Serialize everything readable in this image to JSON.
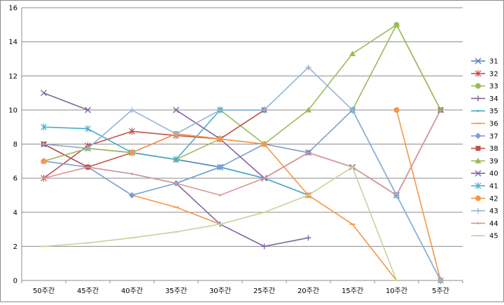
{
  "chart_data": {
    "type": "line",
    "title": "",
    "xlabel": "",
    "ylabel": "",
    "categories": [
      "50주간",
      "45주간",
      "40주간",
      "35주간",
      "30주간",
      "25주간",
      "20주간",
      "15주간",
      "10주간",
      "5주간"
    ],
    "ylim": [
      0,
      16
    ],
    "yticks": [
      "0",
      "2",
      "4",
      "6",
      "8",
      "10",
      "12",
      "14",
      "16"
    ],
    "grid": true,
    "legend": "right",
    "series": [
      {
        "name": "31",
        "color": "#4f81bd",
        "marker": "x",
        "values": [
          8,
          7.75,
          7.5,
          7.1,
          6.65,
          6,
          5,
          null,
          null,
          null
        ]
      },
      {
        "name": "32",
        "color": "#c0504d",
        "marker": "star",
        "values": [
          6,
          7.9,
          8.75,
          8.5,
          8.3,
          null,
          null,
          null,
          null,
          null
        ]
      },
      {
        "name": "33",
        "color": "#9bbb59",
        "marker": "circle",
        "values": [
          null,
          null,
          null,
          null,
          10,
          8,
          null,
          10,
          15,
          10
        ]
      },
      {
        "name": "34",
        "color": "#8064a2",
        "marker": "plus",
        "values": [
          null,
          null,
          null,
          5.7,
          3.3,
          2,
          2.5,
          null,
          null,
          null
        ]
      },
      {
        "name": "35",
        "color": "#4bacc6",
        "marker": "none",
        "values": [
          8,
          6.65,
          6.25,
          5.7,
          6.65,
          6,
          5,
          null,
          null,
          null
        ]
      },
      {
        "name": "36",
        "color": "#f79646",
        "marker": "dash",
        "values": [
          null,
          null,
          5,
          4.3,
          3.3,
          null,
          5,
          3.3,
          0,
          null
        ]
      },
      {
        "name": "37",
        "color": "#7b9fd3",
        "marker": "diamond",
        "values": [
          7,
          6.65,
          5,
          5.7,
          6.65,
          8,
          7.5,
          10,
          5,
          0
        ]
      },
      {
        "name": "38",
        "color": "#c0504d",
        "marker": "square",
        "values": [
          8,
          6.65,
          7.5,
          8.6,
          8.3,
          10,
          null,
          null,
          null,
          null
        ]
      },
      {
        "name": "39",
        "color": "#9bbb59",
        "marker": "triangle",
        "values": [
          7,
          7.75,
          7.5,
          7.1,
          8.3,
          8,
          10,
          13.3,
          15,
          10
        ]
      },
      {
        "name": "40",
        "color": "#8064a2",
        "marker": "x",
        "values": [
          11,
          10,
          null,
          10,
          8.3,
          6,
          7.5,
          6.65,
          5,
          10
        ]
      },
      {
        "name": "41",
        "color": "#4bacc6",
        "marker": "star",
        "values": [
          9,
          8.9,
          7.5,
          7.1,
          10,
          10,
          null,
          10,
          5,
          0
        ]
      },
      {
        "name": "42",
        "color": "#f79646",
        "marker": "circle",
        "values": [
          7,
          null,
          7.5,
          8.6,
          8.3,
          8,
          5,
          null,
          10,
          0
        ]
      },
      {
        "name": "43",
        "color": "#95b3d7",
        "marker": "plus",
        "values": [
          8,
          7.75,
          10,
          8.6,
          10,
          10,
          12.5,
          10,
          5,
          0
        ]
      },
      {
        "name": "44",
        "color": "#d99694",
        "marker": "none",
        "values": [
          6,
          6.65,
          6.25,
          5.7,
          5,
          6,
          7.5,
          6.65,
          5,
          10
        ]
      },
      {
        "name": "45",
        "color": "#c3d69b",
        "marker": "dash",
        "values": [
          2,
          2.2,
          2.5,
          2.85,
          3.3,
          4,
          5,
          6.65,
          0,
          null
        ]
      }
    ]
  }
}
